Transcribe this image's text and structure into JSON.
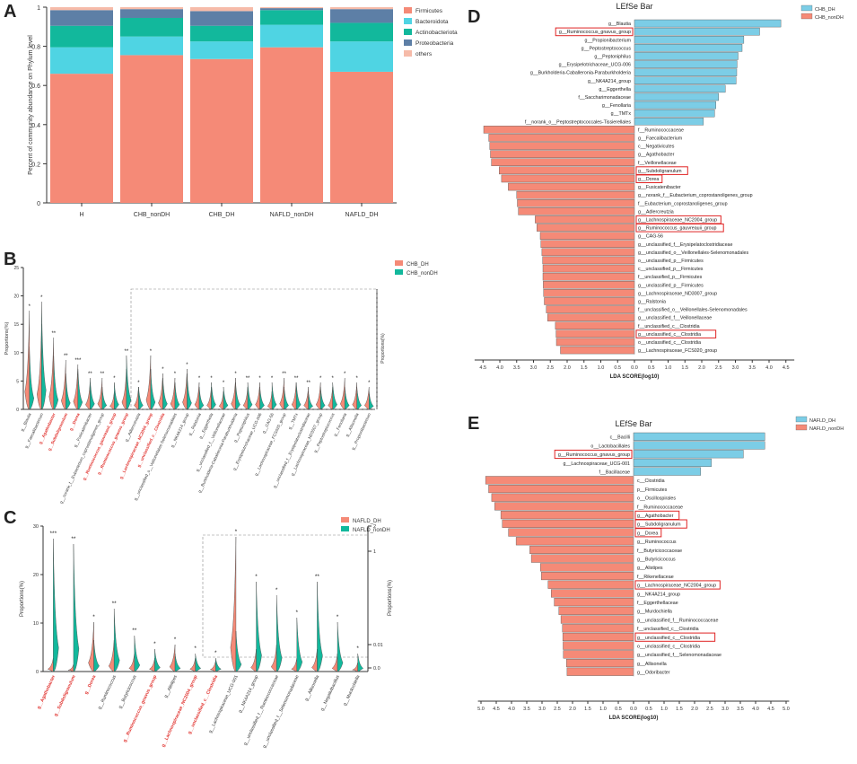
{
  "panels": {
    "a": "A",
    "b": "B",
    "c": "C",
    "d": "D",
    "e": "E"
  },
  "chart_data": [
    {
      "id": "A",
      "type": "bar",
      "stacked": true,
      "ylabel": "Percent of community abundance on Phylum level",
      "ylim": [
        0,
        1
      ],
      "yticks": [
        "0",
        "0.2",
        "0.4",
        "0.6",
        "0.8",
        "1"
      ],
      "categories": [
        "H",
        "CHB_nonDH",
        "CHB_DH",
        "NAFLD_nonDH",
        "NAFLD_DH"
      ],
      "series": [
        {
          "name": "Firmicutes",
          "color": "#f58a77",
          "values": [
            0.66,
            0.755,
            0.735,
            0.795,
            0.67
          ]
        },
        {
          "name": "Bacteroidota",
          "color": "#4fd4e3",
          "values": [
            0.135,
            0.095,
            0.09,
            0.115,
            0.155
          ]
        },
        {
          "name": "Actinobacteriota",
          "color": "#12b89c",
          "values": [
            0.11,
            0.095,
            0.08,
            0.075,
            0.095
          ]
        },
        {
          "name": "Proteobacteria",
          "color": "#5d7fa6",
          "values": [
            0.08,
            0.045,
            0.075,
            0.01,
            0.07
          ]
        },
        {
          "name": "others",
          "color": "#f6bba9",
          "values": [
            0.015,
            0.01,
            0.02,
            0.005,
            0.01
          ]
        }
      ]
    },
    {
      "id": "B",
      "type": "violin",
      "ylabel": "Proportions(%)",
      "ylabel_right": "Proportions(%)",
      "yticks": [
        "0",
        "5",
        "10",
        "15",
        "20",
        "25"
      ],
      "legend": [
        {
          "name": "CHB_DH",
          "color": "#f58a77"
        },
        {
          "name": "CHB_nonDH",
          "color": "#12b89c"
        }
      ],
      "categories": [
        "g__Blautia",
        "g__Faecalibacterium",
        "g__Agathobacter",
        "g__Subdoligranulum",
        "g__Dorea",
        "g__Fusicatenibacter",
        "g__norank_f__Eubacterium_coprostanoligenes_group",
        "g__Ruminococcus_gauvreauii_group",
        "g__Ruminococcus_gnavus_group",
        "g__Adlercreutzia",
        "g__Lachnospiraceae_NC2004_group",
        "g__unclassified_c__Clostridia",
        "g__unclassified_o__Veillonellales-Selenomonadales",
        "g__NK4A214_group",
        "g__Ralstonia",
        "g__Eggerthella",
        "g__unclassified_f__Veillonellaceae",
        "g__Burkholderia-Caballeronia-Paraburkholderia",
        "g__Peptoniphilus",
        "g__Erysipelotrichaceae_UCG-006",
        "g__CAG-56",
        "g__Lachnospiraceae_FCS020_group",
        "g__TMTx",
        "g__unclassified_f__Erysipelatoclostridiaceae",
        "g__Lachnospiraceae_ND3007_group",
        "g__Peptostreptococcus",
        "g__Fenollaria",
        "g__Allisonella",
        "g__Propionibacterium"
      ],
      "highlighted": [
        "g__Agathobacter",
        "g__Subdoligranulum",
        "g__Dorea",
        "g__Ruminococcus_gauvreauii_group",
        "g__Ruminococcus_gnavus_group",
        "g__Lachnospiraceae_NC2004_group",
        "g__unclassified_c__Clostridia"
      ],
      "significance": [
        "*",
        "*",
        "**",
        "**",
        "***",
        "**",
        "**",
        "*",
        "**",
        "*",
        "*",
        "*",
        "*",
        "*",
        "*",
        "*",
        "*",
        "*",
        "**",
        "*",
        "*",
        "**",
        "**",
        "**",
        "*",
        "*",
        "*",
        "*",
        "*"
      ]
    },
    {
      "id": "C",
      "type": "violin",
      "ylabel": "Proportions(%)",
      "ylabel_right": "Proportions(%)",
      "yticks": [
        "0",
        "10",
        "20",
        "30"
      ],
      "right_ticks": [
        "0.0",
        "0.01",
        "1",
        "2"
      ],
      "legend": [
        {
          "name": "NAFLD_DH",
          "color": "#f58a77"
        },
        {
          "name": "NAFLD_nonDH",
          "color": "#12b89c"
        }
      ],
      "categories": [
        "g__Agathobacter",
        "g__Subdoligranulum",
        "g__Dorea",
        "g__Ruminococcus",
        "g__Butyricicoccus",
        "g__Ruminococcus_gnavus_group",
        "g__Alistipes",
        "g__Lachnospiraceae_NC2004_group",
        "g__unclassified_c__Clostridia",
        "g__Lachnospiraceae_UCG-001",
        "g__NK4A214_group",
        "g__unclassified_f__Ruminococcaceae",
        "g__unclassified_f__Selenomonadaceae",
        "g__Allisonella",
        "g__Negativibacillus",
        "g__Murdochiella"
      ],
      "highlighted": [
        "g__Agathobacter",
        "g__Subdoligranulum",
        "g__Dorea",
        "g__Ruminococcus_gnavus_group",
        "g__Lachnospiraceae_NC2004_group",
        "g__unclassified_c__Clostridia"
      ],
      "significance": [
        "***",
        "**",
        "*",
        "**",
        "**",
        "*",
        "*",
        "*",
        "*",
        "*",
        "*",
        "*",
        "*",
        "**",
        "*",
        "*"
      ]
    },
    {
      "id": "D",
      "type": "bar",
      "orientation": "horizontal",
      "title": "LEfSe Bar",
      "xlabel": "LDA SCORE(log10)",
      "xticks": [
        "4.5",
        "4.0",
        "3.5",
        "3.0",
        "2.5",
        "2.0",
        "1.5",
        "1.0",
        "0.5",
        "0.0",
        "0.5",
        "1.0",
        "1.5",
        "2.0",
        "2.5",
        "3.0",
        "3.5",
        "4.0",
        "4.5"
      ],
      "legend": [
        {
          "name": "CHB_DH",
          "color": "#7ccde6"
        },
        {
          "name": "CHB_nonDH",
          "color": "#f58a77"
        }
      ],
      "bars": [
        {
          "label": "g__Blautia",
          "group": "CHB_DH",
          "value": 4.35
        },
        {
          "label": "g__Ruminococcus_gnavus_group",
          "group": "CHB_DH",
          "value": 3.72,
          "boxed": true
        },
        {
          "label": "g__Propionibacterium",
          "group": "CHB_DH",
          "value": 3.25
        },
        {
          "label": "g__Peptostreptococcus",
          "group": "CHB_DH",
          "value": 3.2
        },
        {
          "label": "g__Peptoniphilus",
          "group": "CHB_DH",
          "value": 3.08
        },
        {
          "label": "g__Erysipelotrichaceae_UCG-006",
          "group": "CHB_DH",
          "value": 3.05
        },
        {
          "label": "g__Burkholderia-Caballeronia-Paraburkholderia",
          "group": "CHB_DH",
          "value": 3.04
        },
        {
          "label": "g__NK4A214_group",
          "group": "CHB_DH",
          "value": 3.02
        },
        {
          "label": "g__Eggerthella",
          "group": "CHB_DH",
          "value": 2.7
        },
        {
          "label": "f__Saccharimonadaceae",
          "group": "CHB_DH",
          "value": 2.5
        },
        {
          "label": "g__Fenollaria",
          "group": "CHB_DH",
          "value": 2.42
        },
        {
          "label": "g__TMTx",
          "group": "CHB_DH",
          "value": 2.38
        },
        {
          "label": "f__norank_o__Peptostreptococcales-Tissierellales",
          "group": "CHB_DH",
          "value": 2.05
        },
        {
          "label": "f__Ruminococcaceae",
          "group": "CHB_nonDH",
          "value": 4.48
        },
        {
          "label": "g__Faecalibacterium",
          "group": "CHB_nonDH",
          "value": 4.33
        },
        {
          "label": "c__Negativicutes",
          "group": "CHB_nonDH",
          "value": 4.3
        },
        {
          "label": "g__Agathobacter",
          "group": "CHB_nonDH",
          "value": 4.28
        },
        {
          "label": "f__Veillonellaceae",
          "group": "CHB_nonDH",
          "value": 4.25
        },
        {
          "label": "g__Subdoligranulum",
          "group": "CHB_nonDH",
          "value": 4.02,
          "boxed": true
        },
        {
          "label": "g__Dorea",
          "group": "CHB_nonDH",
          "value": 3.95,
          "boxed": true
        },
        {
          "label": "g__Fusicatenibacter",
          "group": "CHB_nonDH",
          "value": 3.75
        },
        {
          "label": "g__norank_f__Eubacterium_coprostanoligenes_group",
          "group": "CHB_nonDH",
          "value": 3.5
        },
        {
          "label": "f__Eubacterium_coprostanoligenes_group",
          "group": "CHB_nonDH",
          "value": 3.48
        },
        {
          "label": "g__Adlercreutzia",
          "group": "CHB_nonDH",
          "value": 3.45
        },
        {
          "label": "g__Lachnospiraceae_NC2004_group",
          "group": "CHB_nonDH",
          "value": 2.95,
          "boxed": true
        },
        {
          "label": "g__Ruminococcus_gauvreauii_group",
          "group": "CHB_nonDH",
          "value": 2.9,
          "boxed": true
        },
        {
          "label": "g__CAG-56",
          "group": "CHB_nonDH",
          "value": 2.8
        },
        {
          "label": "g__unclassified_f__Erysipelatoclostridiaceae",
          "group": "CHB_nonDH",
          "value": 2.78
        },
        {
          "label": "g__unclassified_o__Veillonellales-Selenomonadales",
          "group": "CHB_nonDH",
          "value": 2.75
        },
        {
          "label": "o__unclassified_p__Firmicutes",
          "group": "CHB_nonDH",
          "value": 2.73
        },
        {
          "label": "c__unclassified_p__Firmicutes",
          "group": "CHB_nonDH",
          "value": 2.72
        },
        {
          "label": "f__unclassified_p__Firmicutes",
          "group": "CHB_nonDH",
          "value": 2.72
        },
        {
          "label": "g__unclassified_p__Firmicutes",
          "group": "CHB_nonDH",
          "value": 2.71
        },
        {
          "label": "g__Lachnospiraceae_ND3007_group",
          "group": "CHB_nonDH",
          "value": 2.7
        },
        {
          "label": "g__Ralstonia",
          "group": "CHB_nonDH",
          "value": 2.68
        },
        {
          "label": "f__unclassified_o__Veillonellales-Selenomonadales",
          "group": "CHB_nonDH",
          "value": 2.62
        },
        {
          "label": "g__unclassified_f__Veillonellaceae",
          "group": "CHB_nonDH",
          "value": 2.58
        },
        {
          "label": "f__unclassified_c__Clostridia",
          "group": "CHB_nonDH",
          "value": 2.35
        },
        {
          "label": "g__unclassified_c__Clostridia",
          "group": "CHB_nonDH",
          "value": 2.33,
          "boxed": true
        },
        {
          "label": "o__unclassified_c__Clostridia",
          "group": "CHB_nonDH",
          "value": 2.32
        },
        {
          "label": "g__Lachnospiraceae_FCS020_group",
          "group": "CHB_nonDH",
          "value": 2.2
        }
      ]
    },
    {
      "id": "E",
      "type": "bar",
      "orientation": "horizontal",
      "title": "LEfSe Bar",
      "xlabel": "LDA SCORE(log10)",
      "xticks": [
        "5.0",
        "4.5",
        "4.0",
        "3.5",
        "3.0",
        "2.5",
        "2.0",
        "1.5",
        "1.0",
        "0.5",
        "0.0",
        "0.5",
        "1.0",
        "1.5",
        "2.0",
        "2.5",
        "3.0",
        "3.5",
        "4.0",
        "4.5",
        "5.0"
      ],
      "legend": [
        {
          "name": "NAFLD_DH",
          "color": "#7ccde6"
        },
        {
          "name": "NAFLD_nonDH",
          "color": "#f58a77"
        }
      ],
      "bars": [
        {
          "label": "c__Bacilli",
          "group": "NAFLD_DH",
          "value": 4.3
        },
        {
          "label": "o__Lactobacillales",
          "group": "NAFLD_DH",
          "value": 4.3
        },
        {
          "label": "g__Ruminococcus_gnavus_group",
          "group": "NAFLD_DH",
          "value": 3.6,
          "boxed": true
        },
        {
          "label": "g__Lachnospiraceae_UCG-001",
          "group": "NAFLD_DH",
          "value": 2.55
        },
        {
          "label": "f__Bacillaceae",
          "group": "NAFLD_DH",
          "value": 2.2
        },
        {
          "label": "c__Clostridia",
          "group": "NAFLD_nonDH",
          "value": 4.85
        },
        {
          "label": "p__Firmicutes",
          "group": "NAFLD_nonDH",
          "value": 4.75
        },
        {
          "label": "o__Oscillospirales",
          "group": "NAFLD_nonDH",
          "value": 4.65
        },
        {
          "label": "f__Ruminococcaceae",
          "group": "NAFLD_nonDH",
          "value": 4.55
        },
        {
          "label": "g__Agathobacter",
          "group": "NAFLD_nonDH",
          "value": 4.35,
          "boxed": true
        },
        {
          "label": "g__Subdoligranulum",
          "group": "NAFLD_nonDH",
          "value": 4.3,
          "boxed": true
        },
        {
          "label": "g__Dorea",
          "group": "NAFLD_nonDH",
          "value": 4.1,
          "boxed": true
        },
        {
          "label": "g__Ruminococcus",
          "group": "NAFLD_nonDH",
          "value": 3.85
        },
        {
          "label": "f__Butyricicoccaceae",
          "group": "NAFLD_nonDH",
          "value": 3.4
        },
        {
          "label": "g__Butyricicoccus",
          "group": "NAFLD_nonDH",
          "value": 3.35
        },
        {
          "label": "g__Alistipes",
          "group": "NAFLD_nonDH",
          "value": 3.05
        },
        {
          "label": "f__Rikenellaceae",
          "group": "NAFLD_nonDH",
          "value": 3.02
        },
        {
          "label": "g__Lachnospiraceae_NC2004_group",
          "group": "NAFLD_nonDH",
          "value": 2.8,
          "boxed": true
        },
        {
          "label": "g__NK4A214_group",
          "group": "NAFLD_nonDH",
          "value": 2.7
        },
        {
          "label": "f__Eggerthellaceae",
          "group": "NAFLD_nonDH",
          "value": 2.6
        },
        {
          "label": "g__Murdochiella",
          "group": "NAFLD_nonDH",
          "value": 2.45
        },
        {
          "label": "g__unclassified_f__Ruminococcaceae",
          "group": "NAFLD_nonDH",
          "value": 2.38
        },
        {
          "label": "f__unclassified_c__Clostridia",
          "group": "NAFLD_nonDH",
          "value": 2.33
        },
        {
          "label": "g__unclassified_c__Clostridia",
          "group": "NAFLD_nonDH",
          "value": 2.32,
          "boxed": true
        },
        {
          "label": "o__unclassified_c__Clostridia",
          "group": "NAFLD_nonDH",
          "value": 2.31
        },
        {
          "label": "g__unclassified_f__Selenomonadaceae",
          "group": "NAFLD_nonDH",
          "value": 2.3
        },
        {
          "label": "g__Allisonella",
          "group": "NAFLD_nonDH",
          "value": 2.2
        },
        {
          "label": "g__Odoribacter",
          "group": "NAFLD_nonDH",
          "value": 2.18
        }
      ]
    }
  ]
}
